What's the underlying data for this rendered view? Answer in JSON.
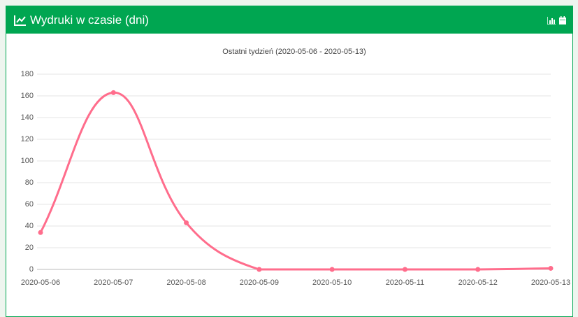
{
  "header": {
    "title": "Wydruki w czasie (dni)"
  },
  "chart_data": {
    "type": "line",
    "title": "Ostatni tydzień (2020-05-06 - 2020-05-13)",
    "categories": [
      "2020-05-06",
      "2020-05-07",
      "2020-05-08",
      "2020-05-09",
      "2020-05-10",
      "2020-05-11",
      "2020-05-12",
      "2020-05-13"
    ],
    "series": [
      {
        "color": "#ff6d8c",
        "values": [
          34,
          163,
          43,
          0,
          0,
          0,
          0,
          1
        ]
      }
    ],
    "ylim": [
      0,
      180
    ],
    "yticks": [
      0,
      20,
      40,
      60,
      80,
      100,
      120,
      140,
      160,
      180
    ],
    "grid": true
  }
}
